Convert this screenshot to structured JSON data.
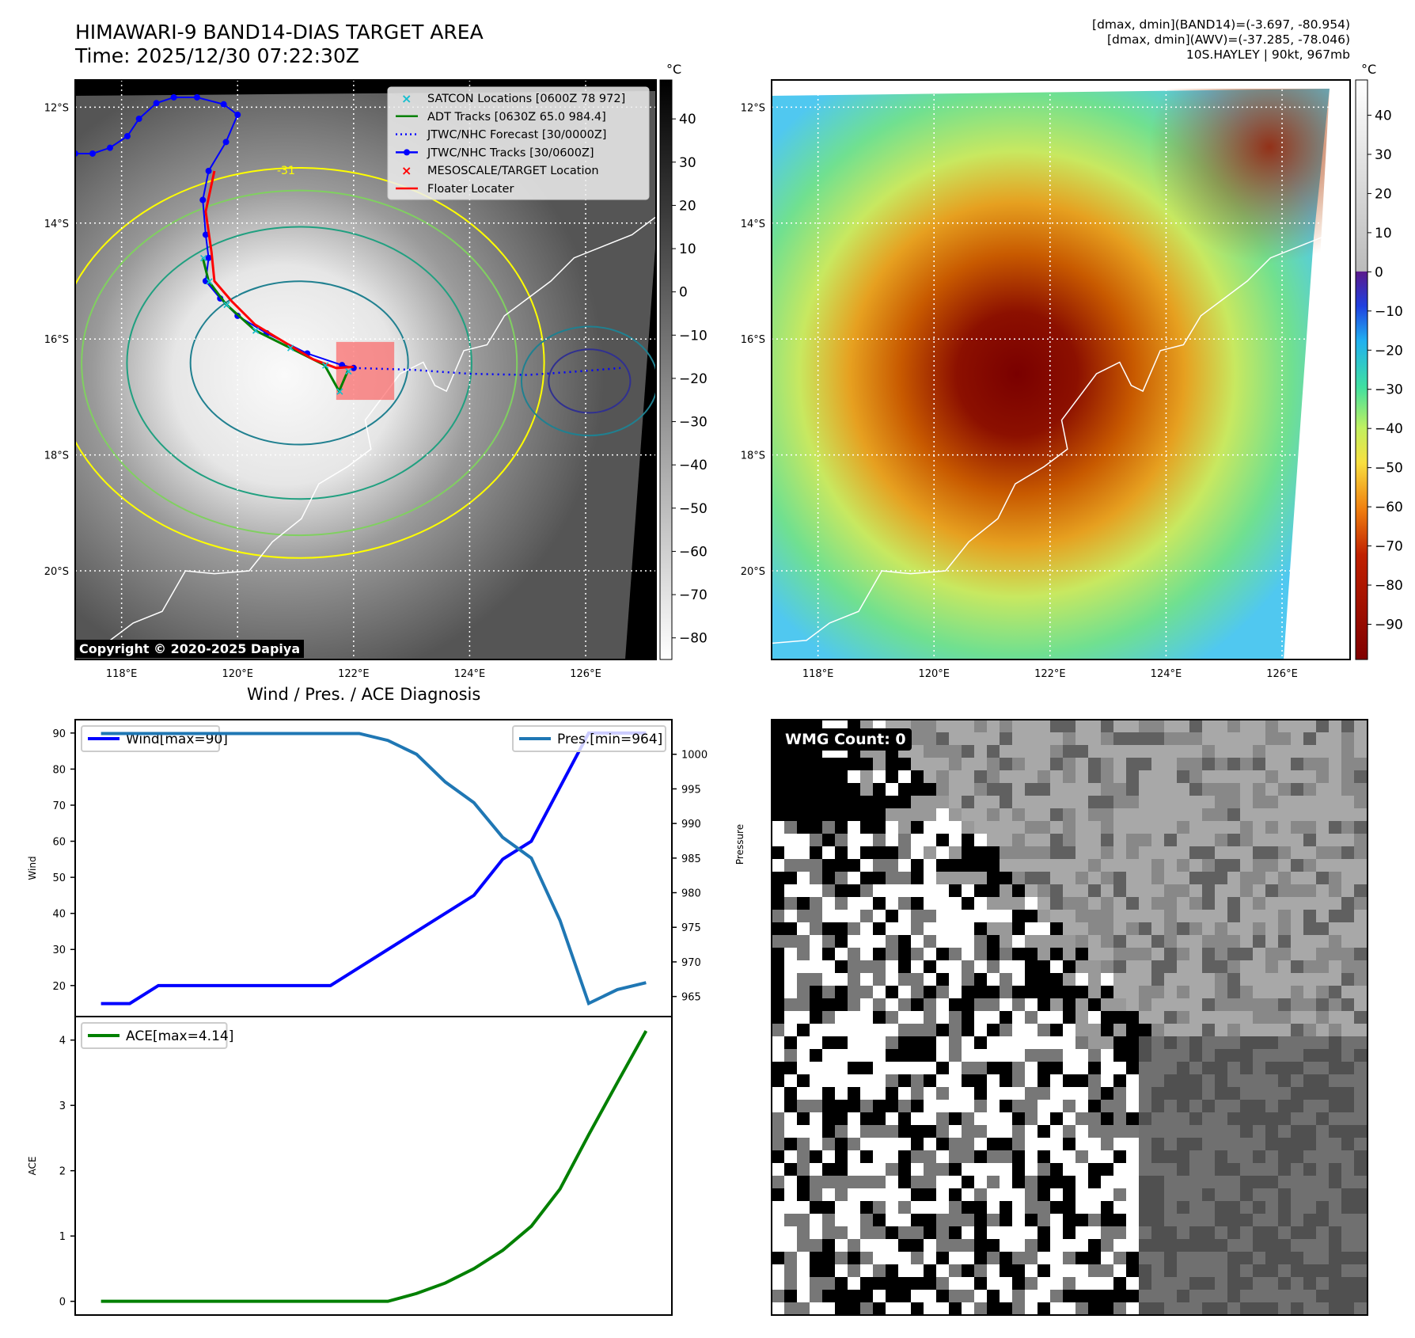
{
  "header": {
    "title": "HIMAWARI-9 BAND14-DIAS TARGET AREA",
    "time": "Time: 2025/12/30 07:22:30Z",
    "info_line1": "[dmax, dmin](BAND14)=(-3.697, -80.954)",
    "info_line2": "[dmax, dmin](AWV)=(-37.285, -78.046)",
    "info_line3": "10S.HAYLEY | 90kt, 967mb"
  },
  "maps": {
    "lat_ticks": [
      "12°S",
      "14°S",
      "16°S",
      "18°S",
      "20°S"
    ],
    "lat_values": [
      12,
      14,
      16,
      18,
      20
    ],
    "lon_ticks": [
      "118°E",
      "120°E",
      "122°E",
      "124°E",
      "126°E"
    ],
    "lon_values": [
      118,
      120,
      122,
      124,
      126
    ],
    "lon_range": [
      117.2,
      127.2
    ],
    "lat_range": [
      11.53,
      21.53
    ],
    "colorbar_unit": "°C",
    "left_colorbar_ticks": [
      "40",
      "30",
      "20",
      "10",
      "0",
      "−10",
      "−20",
      "−30",
      "−40",
      "−50",
      "−60",
      "−70",
      "−80"
    ],
    "left_colorbar_values": [
      40,
      30,
      20,
      10,
      0,
      -10,
      -20,
      -30,
      -40,
      -50,
      -60,
      -70,
      -80
    ],
    "left_colorbar_range": [
      49,
      -85
    ],
    "right_colorbar_ticks": [
      "40",
      "30",
      "20",
      "10",
      "0",
      "−10",
      "−20",
      "−30",
      "−40",
      "−50",
      "−60",
      "−70",
      "−80",
      "−90"
    ],
    "right_colorbar_values": [
      40,
      30,
      20,
      10,
      0,
      -10,
      -20,
      -30,
      -40,
      -50,
      -60,
      -70,
      -80,
      -90
    ],
    "right_colorbar_range": [
      49,
      -99
    ],
    "copyright": "Copyright © 2020-2025 Dapiya",
    "contour_label": "-31",
    "legend": [
      {
        "label": "SATCON Locations [0600Z 78 972]",
        "color": "#17becf",
        "kind": "x"
      },
      {
        "label": "ADT Tracks [0630Z 65.0 984.4]",
        "color": "#008000",
        "kind": "line"
      },
      {
        "label": "JTWC/NHC Forecast [30/0000Z]",
        "color": "#0000ff",
        "kind": "dotted"
      },
      {
        "label": "JTWC/NHC Tracks [30/0600Z]",
        "color": "#0000ff",
        "kind": "dotline"
      },
      {
        "label": "MESOSCALE/TARGET Location",
        "color": "#ff0000",
        "kind": "x"
      },
      {
        "label": "Floater Locater",
        "color": "#ff0000",
        "kind": "line"
      }
    ],
    "jtwc_track": [
      [
        117.2,
        12.8
      ],
      [
        117.5,
        12.8
      ],
      [
        117.8,
        12.7
      ],
      [
        118.1,
        12.5
      ],
      [
        118.3,
        12.2
      ],
      [
        118.6,
        11.93
      ],
      [
        118.9,
        11.83
      ],
      [
        119.3,
        11.83
      ],
      [
        119.76,
        11.95
      ],
      [
        120.0,
        12.13
      ],
      [
        119.8,
        12.6
      ],
      [
        119.5,
        13.1
      ],
      [
        119.4,
        13.6
      ],
      [
        119.45,
        14.2
      ],
      [
        119.5,
        14.6
      ],
      [
        119.45,
        15.0
      ],
      [
        119.7,
        15.3
      ],
      [
        120.0,
        15.6
      ],
      [
        120.5,
        15.9
      ],
      [
        121.2,
        16.25
      ],
      [
        121.8,
        16.45
      ],
      [
        122.0,
        16.5
      ]
    ],
    "forecast_track": [
      [
        122.0,
        16.5
      ],
      [
        123.0,
        16.53
      ],
      [
        124.0,
        16.6
      ],
      [
        125.0,
        16.62
      ],
      [
        126.0,
        16.55
      ],
      [
        126.6,
        16.5
      ]
    ],
    "floater_track": [
      [
        119.6,
        13.1
      ],
      [
        119.45,
        13.8
      ],
      [
        119.55,
        14.5
      ],
      [
        119.6,
        15.0
      ],
      [
        119.9,
        15.35
      ],
      [
        120.3,
        15.75
      ],
      [
        120.8,
        16.05
      ],
      [
        121.3,
        16.35
      ],
      [
        121.7,
        16.5
      ],
      [
        122.0,
        16.48
      ]
    ],
    "adt_track": [
      [
        119.4,
        14.6
      ],
      [
        119.5,
        15.0
      ],
      [
        119.8,
        15.4
      ],
      [
        120.3,
        15.85
      ],
      [
        120.9,
        16.15
      ],
      [
        121.5,
        16.45
      ],
      [
        121.75,
        16.9
      ],
      [
        121.9,
        16.55
      ]
    ],
    "target_box": [
      [
        121.7,
        16.05
      ],
      [
        122.7,
        17.05
      ]
    ]
  },
  "diagnosis": {
    "title": "Wind / Pres. / ACE Diagnosis",
    "wmg_label": "WMG Count: 0"
  },
  "chart_data": [
    {
      "type": "line",
      "title": "Wind / Pres. / ACE Diagnosis",
      "xlabel": "",
      "ylabel": "Wind",
      "ylabel_right": "Pressure",
      "x": [
        0,
        1,
        2,
        3,
        4,
        5,
        6,
        7,
        8,
        9,
        10,
        11,
        12,
        13,
        14,
        15,
        16,
        17,
        18,
        19
      ],
      "xlim": [
        -0.9,
        19.9
      ],
      "ylim": [
        11.4,
        93.7
      ],
      "ylim_right": [
        962.1,
        1005.0
      ],
      "yticks": [
        20,
        30,
        40,
        50,
        60,
        70,
        80,
        90
      ],
      "yticks_right": [
        965,
        970,
        975,
        980,
        985,
        990,
        995,
        1000
      ],
      "series": [
        {
          "name": "Wind[max=90]",
          "axis": "left",
          "color": "#0000ff",
          "legend": "top-left",
          "values": [
            15,
            15,
            20,
            20,
            20,
            20,
            20,
            20,
            20,
            25,
            30,
            35,
            40,
            45,
            55,
            60,
            75,
            90,
            90,
            90
          ]
        },
        {
          "name": "Pres.[min=964]",
          "axis": "right",
          "color": "#1f77b4",
          "legend": "top-right",
          "values": [
            1003,
            1003,
            1003,
            1003,
            1003,
            1003,
            1003,
            1003,
            1003,
            1003,
            1002,
            1000,
            996,
            993,
            988,
            985,
            976,
            964,
            966,
            967
          ]
        }
      ]
    },
    {
      "type": "line",
      "ylabel": "ACE",
      "x": [
        0,
        1,
        2,
        3,
        4,
        5,
        6,
        7,
        8,
        9,
        10,
        11,
        12,
        13,
        14,
        15,
        16,
        17,
        18,
        19
      ],
      "xlim": [
        -0.9,
        19.9
      ],
      "ylim": [
        -0.21,
        4.36
      ],
      "yticks": [
        0,
        1,
        2,
        3,
        4
      ],
      "series": [
        {
          "name": "ACE[max=4.14]",
          "color": "#008000",
          "legend": "top-left",
          "values": [
            0,
            0,
            0,
            0,
            0,
            0,
            0,
            0,
            0,
            0,
            0,
            0.12,
            0.28,
            0.5,
            0.78,
            1.15,
            1.72,
            2.55,
            3.35,
            4.14
          ]
        }
      ]
    }
  ]
}
